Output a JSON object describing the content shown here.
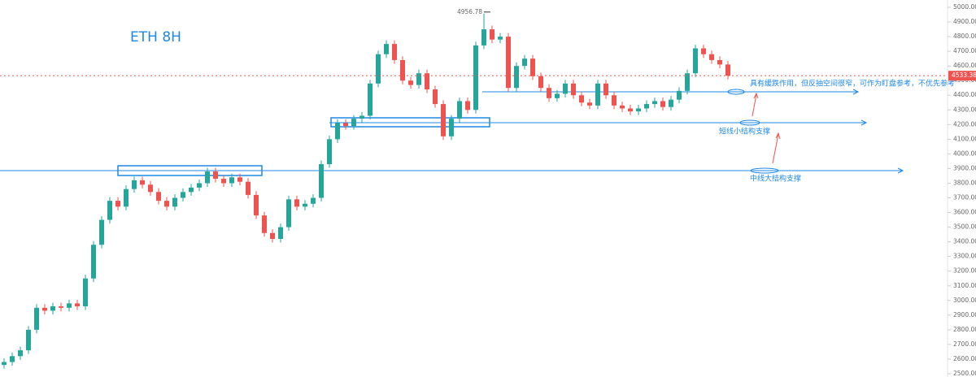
{
  "chart_data": {
    "type": "candlestick",
    "title": "ETH  8H",
    "up_color": "#26a69a",
    "down_color": "#ef5350",
    "series": [
      {
        "name": "ETH",
        "open": [
          2560,
          2580,
          2620,
          2660,
          2800,
          2950,
          2930,
          2960,
          2950,
          2980,
          2960,
          3150,
          3380,
          3550,
          3680,
          3640,
          3760,
          3820,
          3790,
          3740,
          3680,
          3640,
          3700,
          3740,
          3770,
          3800,
          3880,
          3830,
          3800,
          3840,
          3810,
          3720,
          3580,
          3460,
          3420,
          3500,
          3690,
          3640,
          3660,
          3700,
          3930,
          4100,
          4210,
          4190,
          4240,
          4260,
          4480,
          4680,
          4750,
          4640,
          4500,
          4470,
          4550,
          4440,
          4340,
          4120,
          4240,
          4360,
          4300,
          4740,
          4850,
          4780,
          4800,
          4450,
          4600,
          4650,
          4530,
          4450,
          4380,
          4410,
          4480,
          4400,
          4350,
          4330,
          4480,
          4400,
          4330,
          4310,
          4290,
          4310,
          4340,
          4360,
          4320,
          4370,
          4430,
          4550,
          4720,
          4680,
          4640,
          4610
        ],
        "high": [
          2605,
          2645,
          2685,
          2825,
          2975,
          2975,
          2985,
          2985,
          3005,
          3005,
          3175,
          3405,
          3575,
          3705,
          3705,
          3785,
          3845,
          3845,
          3815,
          3765,
          3705,
          3725,
          3765,
          3795,
          3825,
          3905,
          3905,
          3855,
          3865,
          3865,
          3835,
          3745,
          3605,
          3485,
          3525,
          3715,
          3715,
          3685,
          3725,
          3955,
          4125,
          4235,
          4235,
          4265,
          4285,
          4505,
          4705,
          4775,
          4775,
          4665,
          4525,
          4575,
          4575,
          4465,
          4365,
          4265,
          4385,
          4385,
          4765,
          4956.78,
          4875,
          4825,
          4825,
          4625,
          4675,
          4675,
          4555,
          4475,
          4435,
          4505,
          4505,
          4425,
          4375,
          4505,
          4505,
          4425,
          4355,
          4335,
          4335,
          4365,
          4385,
          4385,
          4395,
          4455,
          4575,
          4745,
          4745,
          4705,
          4665,
          4635
        ],
        "low": [
          2535,
          2555,
          2595,
          2635,
          2775,
          2905,
          2905,
          2925,
          2925,
          2935,
          2935,
          3125,
          3355,
          3525,
          3615,
          3615,
          3735,
          3765,
          3715,
          3655,
          3615,
          3615,
          3675,
          3715,
          3745,
          3775,
          3805,
          3775,
          3775,
          3785,
          3695,
          3555,
          3435,
          3395,
          3395,
          3475,
          3615,
          3615,
          3635,
          3675,
          3905,
          4075,
          4165,
          4165,
          4215,
          4235,
          4455,
          4655,
          4615,
          4475,
          4445,
          4445,
          4415,
          4315,
          4095,
          4095,
          4215,
          4275,
          4275,
          4715,
          4755,
          4755,
          4425,
          4425,
          4575,
          4505,
          4425,
          4355,
          4355,
          4385,
          4375,
          4325,
          4305,
          4305,
          4375,
          4305,
          4285,
          4265,
          4265,
          4285,
          4315,
          4295,
          4295,
          4345,
          4405,
          4525,
          4655,
          4615,
          4585,
          4508.38
        ],
        "close": [
          2580,
          2620,
          2660,
          2800,
          2950,
          2930,
          2960,
          2950,
          2980,
          2960,
          3150,
          3380,
          3550,
          3680,
          3640,
          3760,
          3820,
          3790,
          3740,
          3680,
          3640,
          3700,
          3740,
          3770,
          3800,
          3880,
          3830,
          3800,
          3840,
          3810,
          3720,
          3580,
          3460,
          3420,
          3500,
          3690,
          3640,
          3660,
          3700,
          3930,
          4100,
          4210,
          4190,
          4240,
          4260,
          4480,
          4680,
          4750,
          4640,
          4500,
          4470,
          4550,
          4440,
          4340,
          4120,
          4240,
          4360,
          4300,
          4740,
          4850,
          4780,
          4800,
          4450,
          4600,
          4650,
          4530,
          4450,
          4380,
          4410,
          4480,
          4400,
          4350,
          4330,
          4480,
          4400,
          4330,
          4310,
          4290,
          4310,
          4340,
          4360,
          4320,
          4370,
          4430,
          4550,
          4720,
          4680,
          4640,
          4610,
          4533.38
        ]
      }
    ],
    "ylim": [
      2500,
      5000
    ],
    "yticks": [
      {
        "value": 2500,
        "label": "2500.00"
      },
      {
        "value": 2600,
        "label": "2600.00"
      },
      {
        "value": 2700,
        "label": "2700.00"
      },
      {
        "value": 2800,
        "label": "2800.00"
      },
      {
        "value": 2900,
        "label": "2900.00"
      },
      {
        "value": 3000,
        "label": "3000.00"
      },
      {
        "value": 3100,
        "label": "3100.00"
      },
      {
        "value": 3200,
        "label": "3200.00"
      },
      {
        "value": 3300,
        "label": "3300.00"
      },
      {
        "value": 3400,
        "label": "3400.00"
      },
      {
        "value": 3500,
        "label": "3500.00"
      },
      {
        "value": 3600,
        "label": "3600.00"
      },
      {
        "value": 3700,
        "label": "3700.00"
      },
      {
        "value": 3800,
        "label": "3800.00"
      },
      {
        "value": 3900,
        "label": "3900.00"
      },
      {
        "value": 4000,
        "label": "4000.00"
      },
      {
        "value": 4100,
        "label": "4100.00"
      },
      {
        "value": 4200,
        "label": "4200.00"
      },
      {
        "value": 4300,
        "label": "4300.00"
      },
      {
        "value": 4400,
        "label": "4400.00"
      },
      {
        "value": 4500,
        "label": "4500.00"
      },
      {
        "value": 4600,
        "label": "4600.00"
      },
      {
        "value": 4700,
        "label": "4700.00"
      },
      {
        "value": 4800,
        "label": "4800.00"
      },
      {
        "value": 4900,
        "label": "4900.00"
      },
      {
        "value": 5000,
        "label": "5000.00"
      }
    ],
    "annotations": [
      "具有缓跌作用，但反抽空间很窄，可作为盯盘参考，不优先参考",
      "短线小结构支撑",
      "中线大结构支撑"
    ]
  }
}
